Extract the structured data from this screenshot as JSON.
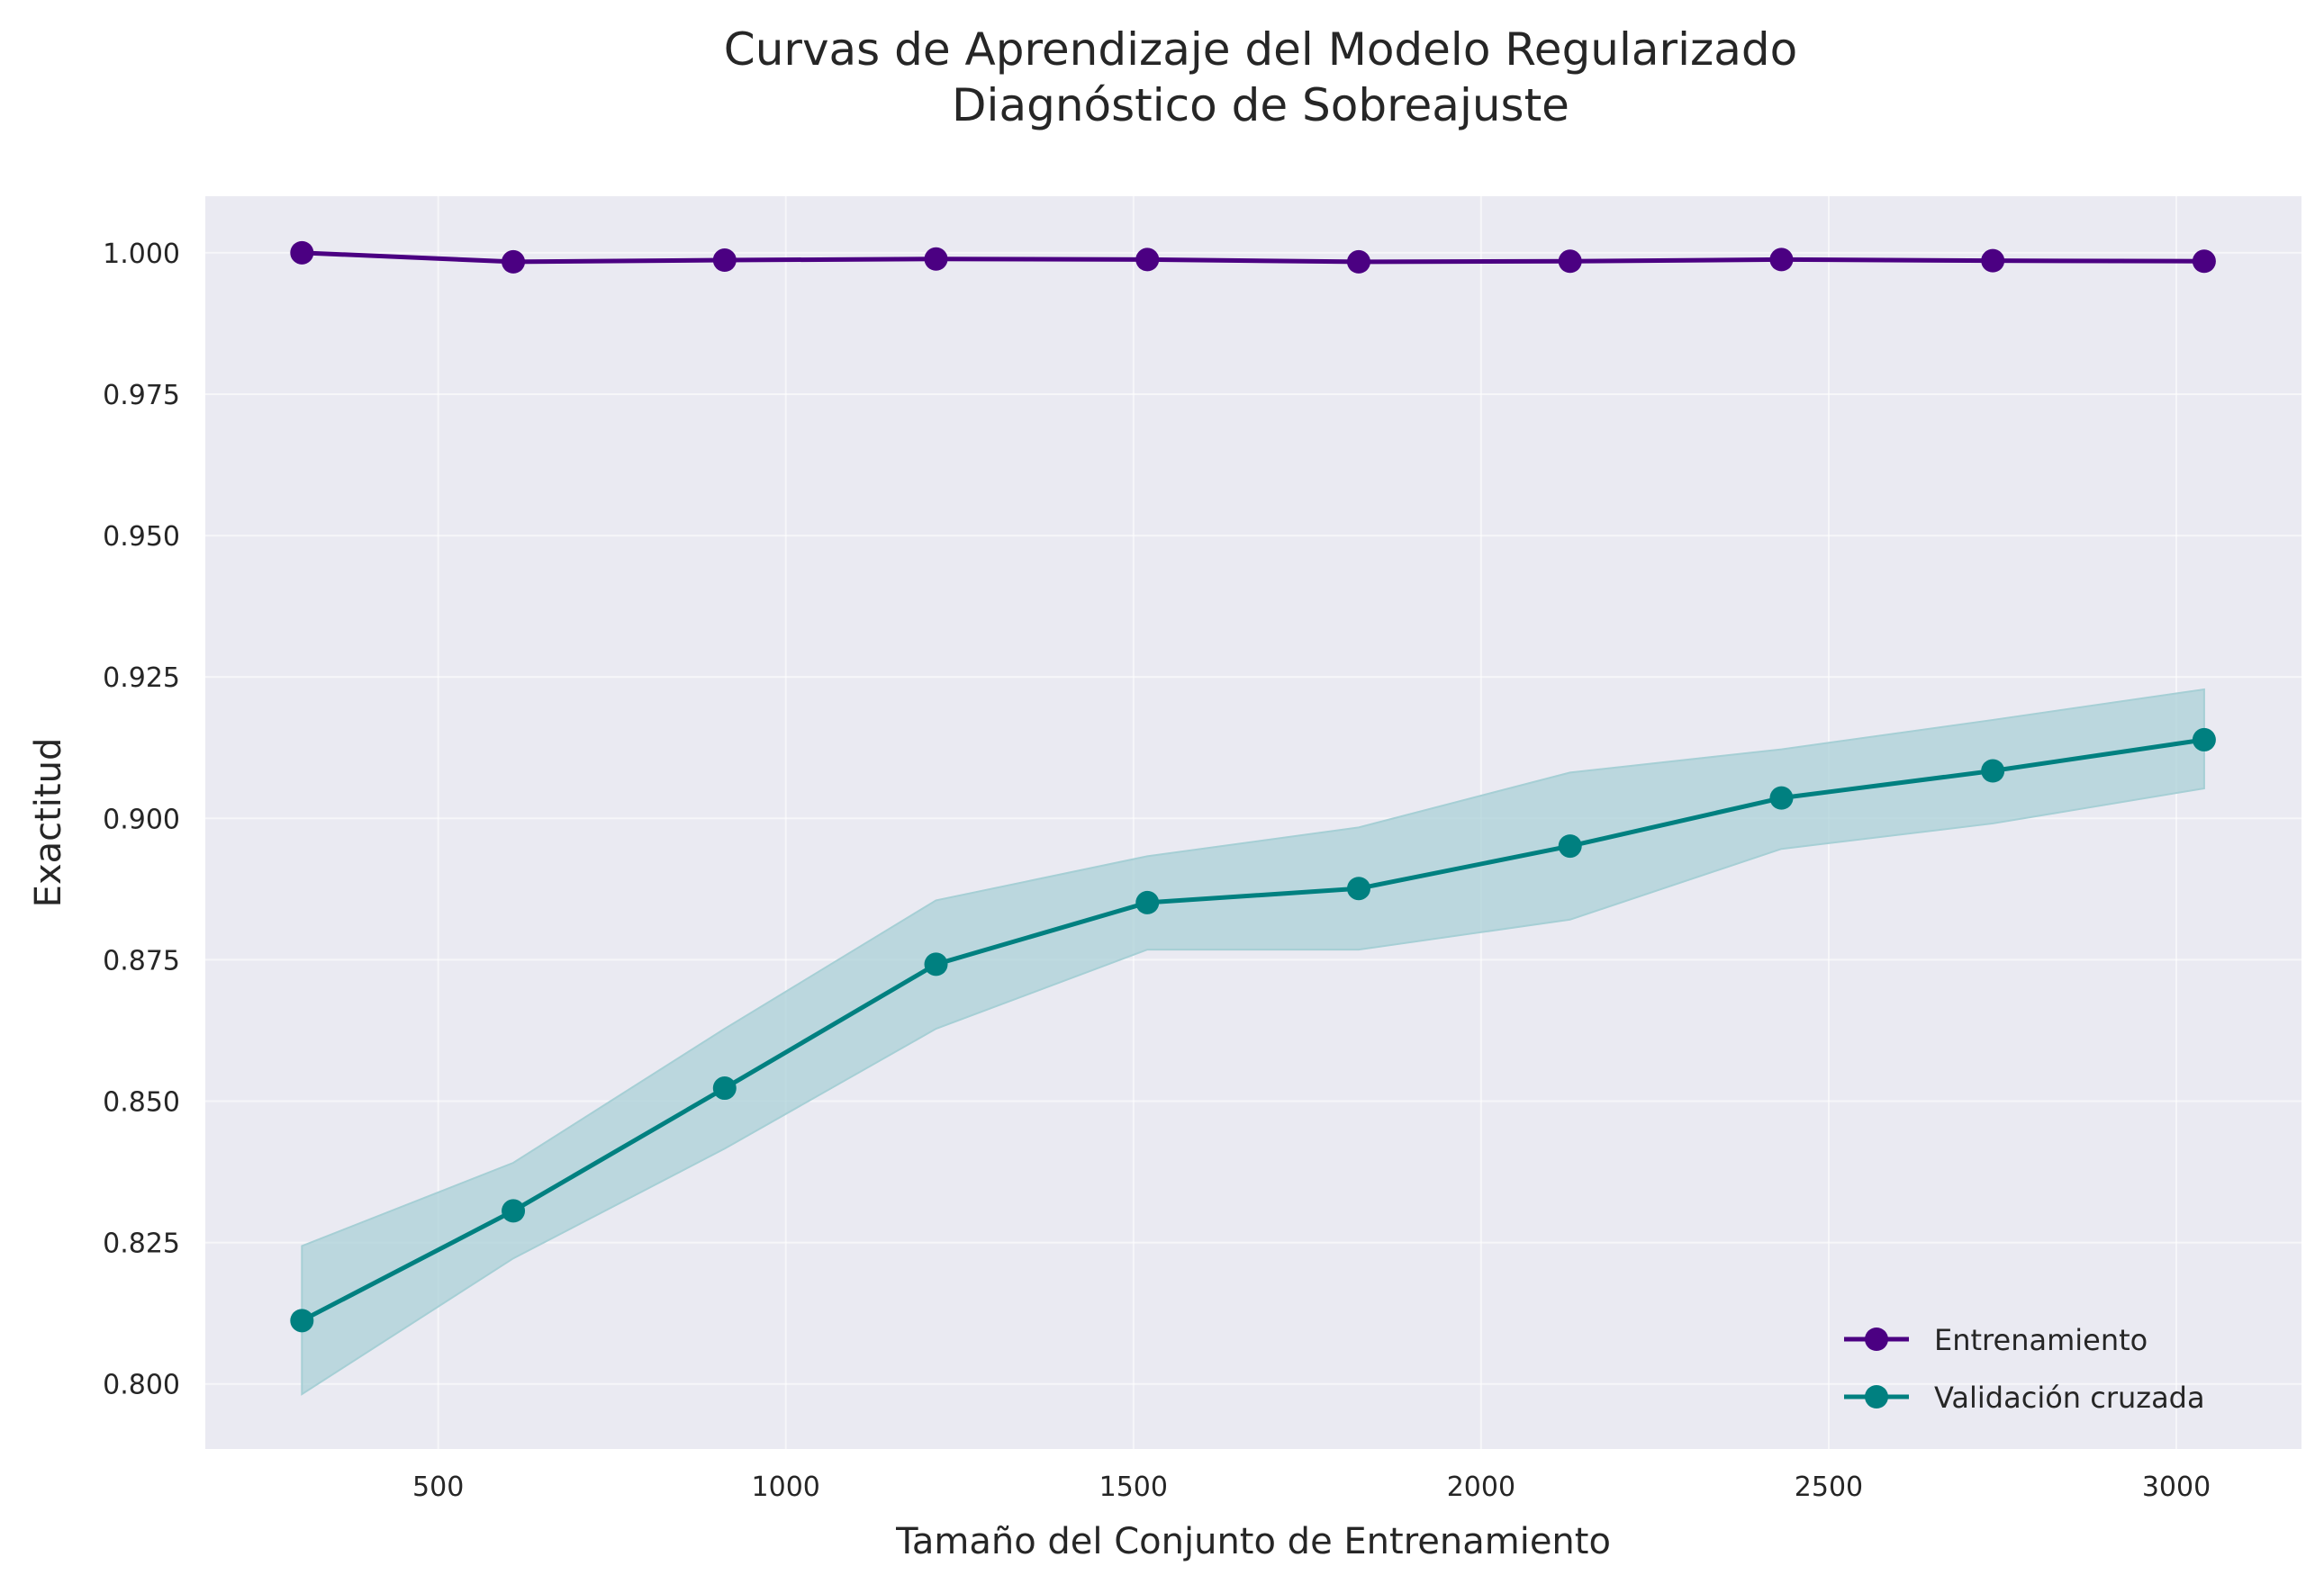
{
  "chart_data": {
    "type": "line",
    "title_line1": "Curvas de Aprendizaje del Modelo Regularizado",
    "title_line2": "Diagnóstico de Sobreajuste",
    "xlabel": "Tamaño del Conjunto de Entrenamiento",
    "ylabel": "Exactitud",
    "xlim": [
      165,
      3180
    ],
    "ylim": [
      0.7885,
      1.01
    ],
    "xticks": [
      500,
      1000,
      1500,
      2000,
      2500,
      3000
    ],
    "xtick_labels": [
      "500",
      "1000",
      "1500",
      "2000",
      "2500",
      "3000"
    ],
    "yticks": [
      0.8,
      0.825,
      0.85,
      0.875,
      0.9,
      0.925,
      0.95,
      0.975,
      1.0
    ],
    "ytick_labels": [
      "0.800",
      "0.825",
      "0.850",
      "0.875",
      "0.900",
      "0.925",
      "0.950",
      "0.975",
      "1.000"
    ],
    "grid": true,
    "legend_position": "lower-right",
    "x": [
      304,
      608,
      912,
      1216,
      1520,
      1824,
      2128,
      2432,
      2736,
      3040
    ],
    "series": [
      {
        "name": "Entrenamiento",
        "color": "#4b0082",
        "values": [
          1.0,
          0.9984,
          0.9987,
          0.9989,
          0.9988,
          0.9984,
          0.9985,
          0.9988,
          0.9986,
          0.9985
        ]
      },
      {
        "name": "Validación cruzada",
        "color": "#008080",
        "band_color": "#a6cfd5",
        "values": [
          0.8112,
          0.8306,
          0.8523,
          0.8742,
          0.8851,
          0.8876,
          0.8951,
          0.9036,
          0.9084,
          0.9139
        ],
        "lower": [
          0.7982,
          0.8222,
          0.8416,
          0.8628,
          0.8768,
          0.8768,
          0.8821,
          0.8946,
          0.8991,
          0.9053
        ],
        "upper": [
          0.8244,
          0.8391,
          0.8628,
          0.8855,
          0.8933,
          0.8984,
          0.9081,
          0.9122,
          0.9174,
          0.9228
        ]
      }
    ]
  },
  "colors": {
    "plot_background": "#eaeaf2",
    "grid": "#ffffff"
  }
}
